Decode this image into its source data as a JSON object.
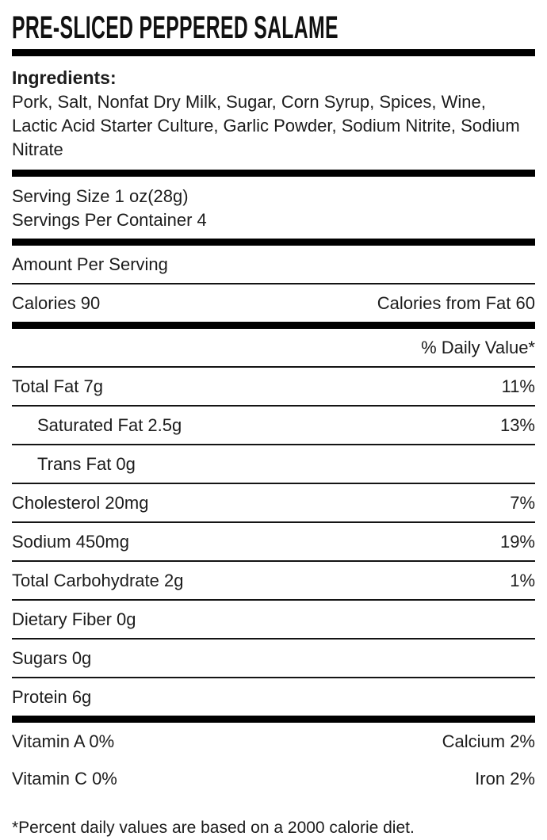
{
  "title": "PRE-SLICED PEPPERED SALAME",
  "ingredients": {
    "heading": "Ingredients:",
    "text": "Pork, Salt, Nonfat Dry Milk, Sugar, Corn Syrup, Spices, Wine, Lactic Acid Starter Culture, Garlic Powder, Sodium Nitrite, Sodium Nitrate"
  },
  "serving": {
    "size_label": "Serving Size 1 oz(28g)",
    "per_container_label": "Servings Per Container 4"
  },
  "amount_per_serving_label": "Amount Per Serving",
  "calories": {
    "left": "Calories 90",
    "right": "Calories from Fat 60"
  },
  "daily_value_header": "% Daily Value*",
  "nutrients": [
    {
      "label": "Total Fat 7g",
      "dv": "11%"
    },
    {
      "label": "Saturated Fat 2.5g",
      "dv": "13%"
    },
    {
      "label": "Trans Fat 0g",
      "dv": ""
    },
    {
      "label": "Cholesterol 20mg",
      "dv": "7%"
    },
    {
      "label": "Sodium 450mg",
      "dv": "19%"
    },
    {
      "label": "Total Carbohydrate 2g",
      "dv": "1%"
    },
    {
      "label": "Dietary Fiber 0g",
      "dv": ""
    },
    {
      "label": "Sugars 0g",
      "dv": ""
    },
    {
      "label": "Protein 6g",
      "dv": ""
    }
  ],
  "vitamins": [
    {
      "left": "Vitamin A 0%",
      "right": "Calcium 2%"
    },
    {
      "left": "Vitamin C 0%",
      "right": "Iron 2%"
    }
  ],
  "footnote": "*Percent daily values are based on a 2000 calorie diet.",
  "colors": {
    "text": "#1c1c1c",
    "rule": "#000000",
    "background": "#ffffff"
  }
}
